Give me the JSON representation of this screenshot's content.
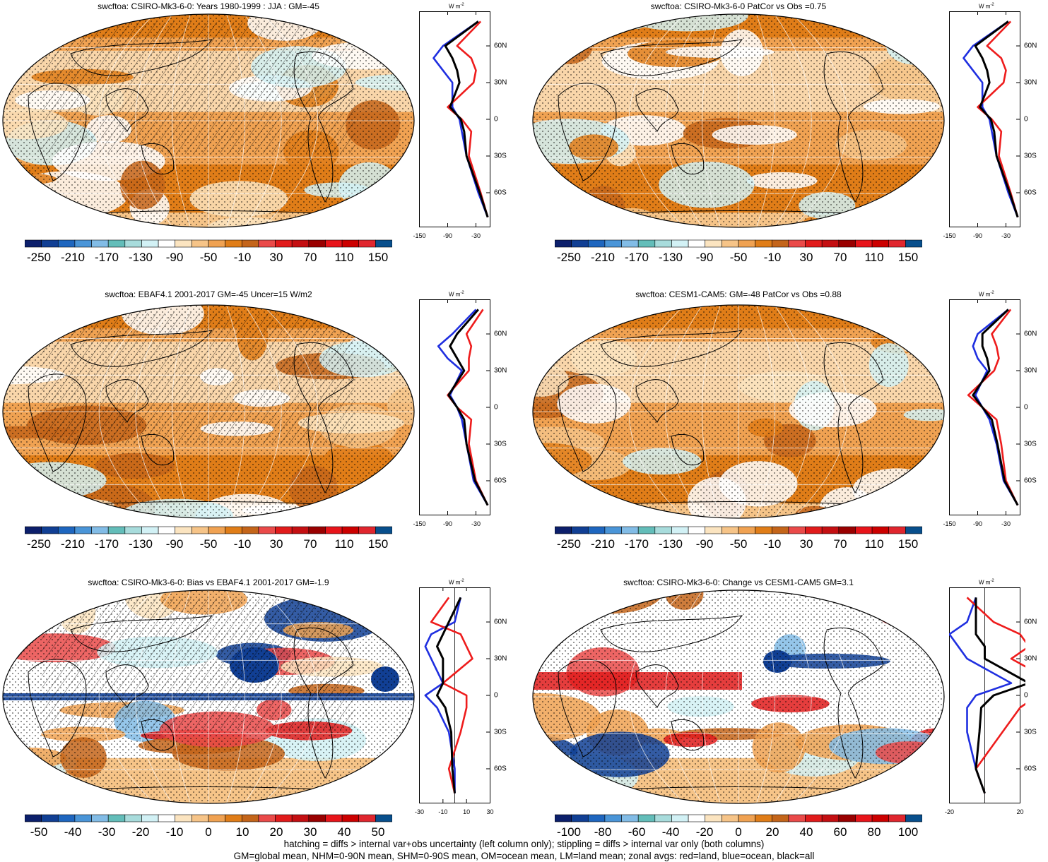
{
  "footer": {
    "line1": "hatching = diffs > internal var+obs uncertainty (left column only); stippling = diffs > internal var only (both columns)",
    "line2": "GM=global mean, NHM=0-90N mean, SHM=0-90S mean, OM=ocean mean, LM=land mean; zonal avgs: red=land, blue=ocean, black=all"
  },
  "zonal_unit": "W m",
  "zonal_unit_sup": "-2",
  "lat_ticks": [
    "60N",
    "30N",
    "0",
    "30S",
    "60S"
  ],
  "colors": {
    "land": "#ee1c1c",
    "ocean": "#1f2fe0",
    "all": "#000000"
  },
  "panels": [
    {
      "title": "swcftoa: CSIRO-Mk3-6-0: Years 1980-1999 : JJA : GM=-45",
      "cbar_labels": [
        "-250",
        "-210",
        "-170",
        "-130",
        "-90",
        "-50",
        "-10",
        "30",
        "70",
        "110",
        "150"
      ],
      "cbar_kind": "abs",
      "zonal_xticks": [
        "-150",
        "-90",
        "-30"
      ],
      "hatch": true,
      "variant": 0
    },
    {
      "title": "swcftoa: CSIRO-Mk3-6-0 PatCor vs Obs =0.75",
      "cbar_labels": [
        "-250",
        "-210",
        "-170",
        "-130",
        "-90",
        "-50",
        "-10",
        "30",
        "70",
        "110",
        "150"
      ],
      "cbar_kind": "abs",
      "zonal_xticks": [
        "-150",
        "-90",
        "-30"
      ],
      "hatch": false,
      "variant": 1
    },
    {
      "title": "swcftoa: EBAF4.1 2001-2017 GM=-45 Uncer=15 W/m2",
      "cbar_labels": [
        "-250",
        "-210",
        "-170",
        "-130",
        "-90",
        "-50",
        "-10",
        "30",
        "70",
        "110",
        "150"
      ],
      "cbar_kind": "abs",
      "zonal_xticks": [
        "-150",
        "-90",
        "-30"
      ],
      "hatch": true,
      "variant": 2
    },
    {
      "title": "swcftoa: CESM1-CAM5: GM=-48 PatCor vs Obs =0.88",
      "cbar_labels": [
        "-250",
        "-210",
        "-170",
        "-130",
        "-90",
        "-50",
        "-10",
        "30",
        "70",
        "110",
        "150"
      ],
      "cbar_kind": "abs",
      "zonal_xticks": [
        "-150",
        "-90",
        "-30"
      ],
      "hatch": false,
      "variant": 3
    },
    {
      "title": "swcftoa: CSIRO-Mk3-6-0: Bias vs EBAF4.1 2001-2017 GM=-1.9",
      "cbar_labels": [
        "-50",
        "-40",
        "-30",
        "-20",
        "-10",
        "0",
        "10",
        "20",
        "30",
        "40",
        "50"
      ],
      "cbar_kind": "diff",
      "zonal_xticks": [
        "-30",
        "-10",
        "10",
        "30"
      ],
      "hatch": true,
      "variant": 4
    },
    {
      "title": "swcftoa: CSIRO-Mk3-6-0: Change vs CESM1-CAM5 GM=3.1",
      "cbar_labels": [
        "-100",
        "-80",
        "-60",
        "-40",
        "-20",
        "0",
        "20",
        "40",
        "60",
        "80",
        "100"
      ],
      "cbar_kind": "diff",
      "zonal_xticks": [
        "-20",
        "20"
      ],
      "hatch": false,
      "variant": 5
    }
  ],
  "palette": [
    "#0c1f6b",
    "#113f94",
    "#1e66bf",
    "#4a95d8",
    "#82bce6",
    "#63bdb9",
    "#a8dcdc",
    "#d2f1f5",
    "#ffffff",
    "#fbe4c0",
    "#f6c488",
    "#f0a252",
    "#e07d18",
    "#c4651a",
    "#ea4a49",
    "#e11b1b",
    "#c40f12",
    "#990000",
    "#e8141a",
    "#cc0000",
    "#e0262e",
    "#084f8c"
  ],
  "chart_data": [
    {
      "type": "heatmap",
      "title": "swcftoa: CSIRO-Mk3-6-0: Years 1980-1999 : JJA : GM=-45",
      "colorbar": [
        -250,
        -210,
        -170,
        -130,
        -90,
        -50,
        -10,
        30,
        70,
        110,
        150
      ],
      "zonal": {
        "lat": [
          80,
          60,
          50,
          40,
          30,
          10,
          0,
          -10,
          -30,
          -60,
          -80
        ],
        "land": [
          -20,
          -70,
          -40,
          -30,
          -35,
          -90,
          -60,
          -40,
          -45,
          -20,
          -5
        ],
        "ocean": [
          -25,
          -100,
          -120,
          -100,
          -80,
          -80,
          -65,
          -60,
          -50,
          -25,
          -5
        ],
        "all": [
          -25,
          -95,
          -80,
          -70,
          -65,
          -85,
          -62,
          -55,
          -50,
          -22,
          -5
        ]
      }
    },
    {
      "type": "heatmap",
      "title": "swcftoa: CSIRO-Mk3-6-0 PatCor vs Obs =0.75",
      "colorbar": [
        -250,
        -210,
        -170,
        -130,
        -90,
        -50,
        -10,
        30,
        70,
        110,
        150
      ],
      "zonal": {
        "lat": [
          80,
          60,
          50,
          40,
          30,
          10,
          0,
          -10,
          -30,
          -60,
          -80
        ],
        "land": [
          -20,
          -70,
          -40,
          -30,
          -35,
          -90,
          -60,
          -40,
          -45,
          -20,
          -5
        ],
        "ocean": [
          -25,
          -100,
          -120,
          -100,
          -80,
          -80,
          -65,
          -60,
          -50,
          -25,
          -5
        ],
        "all": [
          -25,
          -95,
          -80,
          -70,
          -65,
          -85,
          -62,
          -55,
          -50,
          -22,
          -5
        ]
      }
    },
    {
      "type": "heatmap",
      "title": "swcftoa: EBAF4.1 2001-2017 GM=-45 Uncer=15 W/m2",
      "colorbar": [
        -250,
        -210,
        -170,
        -130,
        -90,
        -50,
        -10,
        30,
        70,
        110,
        150
      ],
      "zonal": {
        "lat": [
          80,
          60,
          50,
          40,
          30,
          10,
          0,
          -10,
          -30,
          -60,
          -80
        ],
        "land": [
          -15,
          -50,
          -40,
          -45,
          -45,
          -90,
          -70,
          -40,
          -45,
          -30,
          -5
        ],
        "ocean": [
          -30,
          -80,
          -110,
          -90,
          -60,
          -85,
          -70,
          -60,
          -50,
          -35,
          -5
        ],
        "all": [
          -25,
          -70,
          -85,
          -70,
          -55,
          -88,
          -70,
          -55,
          -50,
          -32,
          -5
        ]
      }
    },
    {
      "type": "heatmap",
      "title": "swcftoa: CESM1-CAM5: GM=-48 PatCor vs Obs =0.88",
      "colorbar": [
        -250,
        -210,
        -170,
        -130,
        -90,
        -50,
        -10,
        30,
        70,
        110,
        150
      ],
      "zonal": {
        "lat": [
          80,
          60,
          50,
          40,
          30,
          10,
          0,
          -10,
          -30,
          -60,
          -80
        ],
        "land": [
          -20,
          -60,
          -50,
          -45,
          -55,
          -110,
          -80,
          -50,
          -40,
          -30,
          -5
        ],
        "ocean": [
          -25,
          -90,
          -100,
          -90,
          -70,
          -95,
          -80,
          -65,
          -50,
          -35,
          -5
        ],
        "all": [
          -25,
          -80,
          -80,
          -70,
          -65,
          -100,
          -80,
          -60,
          -48,
          -33,
          -5
        ]
      }
    },
    {
      "type": "heatmap",
      "title": "swcftoa: CSIRO-Mk3-6-0: Bias vs EBAF4.1 2001-2017 GM=-1.9",
      "colorbar": [
        -50,
        -40,
        -30,
        -20,
        -10,
        0,
        10,
        20,
        30,
        40,
        50
      ],
      "zonal": {
        "lat": [
          80,
          60,
          50,
          40,
          30,
          10,
          0,
          -10,
          -30,
          -60,
          -80
        ],
        "land": [
          -5,
          -20,
          5,
          10,
          15,
          -10,
          10,
          10,
          5,
          -5,
          0
        ],
        "ocean": [
          5,
          0,
          -20,
          -25,
          -20,
          -10,
          -25,
          -15,
          -5,
          0,
          0
        ],
        "all": [
          5,
          -5,
          -10,
          -15,
          -10,
          -10,
          -15,
          -8,
          -3,
          -2,
          0
        ]
      }
    },
    {
      "type": "heatmap",
      "title": "swcftoa: CSIRO-Mk3-6-0: Change vs CESM1-CAM5 GM=3.1",
      "colorbar": [
        -100,
        -80,
        -60,
        -40,
        -20,
        0,
        20,
        40,
        60,
        80,
        100
      ],
      "zonal": {
        "lat": [
          80,
          60,
          50,
          40,
          30,
          10,
          0,
          -10,
          -30,
          -60,
          -80
        ],
        "land": [
          -10,
          5,
          20,
          25,
          15,
          40,
          30,
          20,
          10,
          -5,
          0
        ],
        "ocean": [
          -5,
          -10,
          -20,
          -15,
          -10,
          15,
          -5,
          -10,
          -10,
          -5,
          0
        ],
        "all": [
          -5,
          -5,
          -5,
          0,
          0,
          25,
          5,
          -2,
          -3,
          -5,
          0
        ]
      }
    }
  ]
}
